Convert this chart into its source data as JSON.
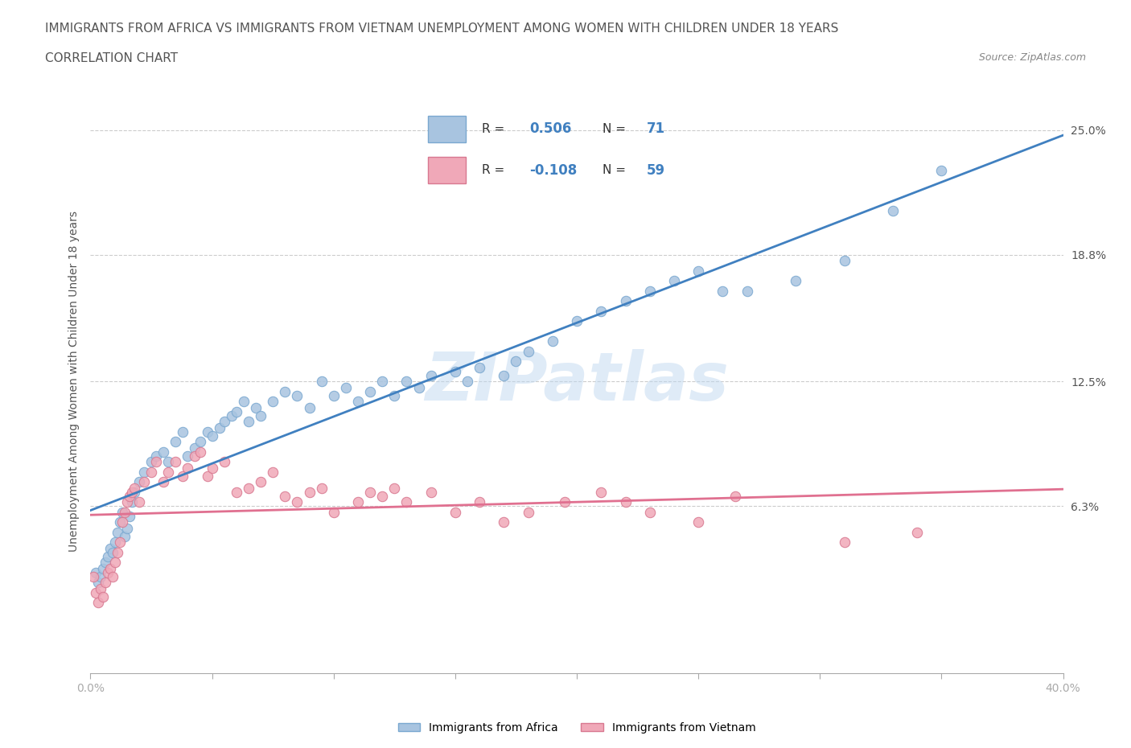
{
  "title_line1": "IMMIGRANTS FROM AFRICA VS IMMIGRANTS FROM VIETNAM UNEMPLOYMENT AMONG WOMEN WITH CHILDREN UNDER 18 YEARS",
  "title_line2": "CORRELATION CHART",
  "source": "Source: ZipAtlas.com",
  "xlabel": "",
  "ylabel": "Unemployment Among Women with Children Under 18 years",
  "xlim": [
    0.0,
    0.4
  ],
  "ylim": [
    -0.02,
    0.27
  ],
  "yticks": [
    0.063,
    0.125,
    0.188,
    0.25
  ],
  "ytick_labels": [
    "6.3%",
    "12.5%",
    "18.8%",
    "25.0%"
  ],
  "xticks": [
    0.0,
    0.05,
    0.1,
    0.15,
    0.2,
    0.25,
    0.3,
    0.35,
    0.4
  ],
  "xtick_labels": [
    "0.0%",
    "",
    "",
    "",
    "",
    "",
    "",
    "",
    "40.0%"
  ],
  "hlines": [
    0.063,
    0.125,
    0.188,
    0.25
  ],
  "africa_color": "#a8c4e0",
  "africa_edge": "#7aa8d0",
  "vietnam_color": "#f0a8b8",
  "vietnam_edge": "#d87890",
  "africa_line_color": "#4080c0",
  "vietnam_line_color": "#e07090",
  "R_africa": 0.506,
  "N_africa": 71,
  "R_vietnam": -0.108,
  "N_vietnam": 59,
  "watermark": "ZIPatlas",
  "watermark_color": "#c0d8f0",
  "legend_label_africa": "Immigrants from Africa",
  "legend_label_vietnam": "Immigrants from Vietnam",
  "africa_x": [
    0.002,
    0.003,
    0.004,
    0.005,
    0.006,
    0.007,
    0.008,
    0.009,
    0.01,
    0.011,
    0.012,
    0.013,
    0.014,
    0.015,
    0.016,
    0.017,
    0.018,
    0.02,
    0.022,
    0.025,
    0.027,
    0.03,
    0.032,
    0.035,
    0.038,
    0.04,
    0.043,
    0.045,
    0.048,
    0.05,
    0.053,
    0.055,
    0.058,
    0.06,
    0.063,
    0.065,
    0.068,
    0.07,
    0.075,
    0.08,
    0.085,
    0.09,
    0.095,
    0.1,
    0.105,
    0.11,
    0.115,
    0.12,
    0.125,
    0.13,
    0.135,
    0.14,
    0.15,
    0.155,
    0.16,
    0.17,
    0.175,
    0.18,
    0.19,
    0.2,
    0.21,
    0.22,
    0.23,
    0.24,
    0.25,
    0.26,
    0.27,
    0.29,
    0.31,
    0.33,
    0.35
  ],
  "africa_y": [
    0.03,
    0.025,
    0.028,
    0.032,
    0.035,
    0.038,
    0.042,
    0.04,
    0.045,
    0.05,
    0.055,
    0.06,
    0.048,
    0.052,
    0.058,
    0.065,
    0.07,
    0.075,
    0.08,
    0.085,
    0.088,
    0.09,
    0.085,
    0.095,
    0.1,
    0.088,
    0.092,
    0.095,
    0.1,
    0.098,
    0.102,
    0.105,
    0.108,
    0.11,
    0.115,
    0.105,
    0.112,
    0.108,
    0.115,
    0.12,
    0.118,
    0.112,
    0.125,
    0.118,
    0.122,
    0.115,
    0.12,
    0.125,
    0.118,
    0.125,
    0.122,
    0.128,
    0.13,
    0.125,
    0.132,
    0.128,
    0.135,
    0.14,
    0.145,
    0.155,
    0.16,
    0.165,
    0.17,
    0.175,
    0.18,
    0.17,
    0.17,
    0.175,
    0.185,
    0.21,
    0.23
  ],
  "vietnam_x": [
    0.001,
    0.002,
    0.003,
    0.004,
    0.005,
    0.006,
    0.007,
    0.008,
    0.009,
    0.01,
    0.011,
    0.012,
    0.013,
    0.014,
    0.015,
    0.016,
    0.017,
    0.018,
    0.02,
    0.022,
    0.025,
    0.027,
    0.03,
    0.032,
    0.035,
    0.038,
    0.04,
    0.043,
    0.045,
    0.048,
    0.05,
    0.055,
    0.06,
    0.065,
    0.07,
    0.075,
    0.08,
    0.085,
    0.09,
    0.095,
    0.1,
    0.11,
    0.115,
    0.12,
    0.125,
    0.13,
    0.14,
    0.15,
    0.16,
    0.17,
    0.18,
    0.195,
    0.21,
    0.22,
    0.23,
    0.25,
    0.265,
    0.31,
    0.34
  ],
  "vietnam_y": [
    0.028,
    0.02,
    0.015,
    0.022,
    0.018,
    0.025,
    0.03,
    0.032,
    0.028,
    0.035,
    0.04,
    0.045,
    0.055,
    0.06,
    0.065,
    0.068,
    0.07,
    0.072,
    0.065,
    0.075,
    0.08,
    0.085,
    0.075,
    0.08,
    0.085,
    0.078,
    0.082,
    0.088,
    0.09,
    0.078,
    0.082,
    0.085,
    0.07,
    0.072,
    0.075,
    0.08,
    0.068,
    0.065,
    0.07,
    0.072,
    0.06,
    0.065,
    0.07,
    0.068,
    0.072,
    0.065,
    0.07,
    0.06,
    0.065,
    0.055,
    0.06,
    0.065,
    0.07,
    0.065,
    0.06,
    0.055,
    0.068,
    0.045,
    0.05
  ]
}
